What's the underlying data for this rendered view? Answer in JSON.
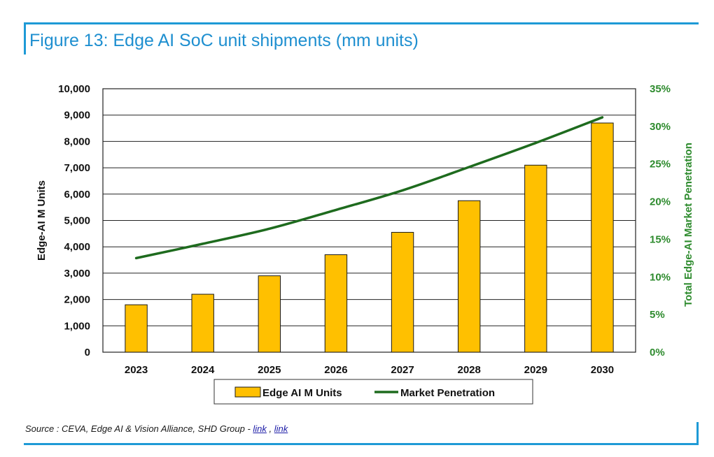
{
  "header": {
    "title": "Figure 13: Edge AI SoC unit shipments (mm units)"
  },
  "footer": {
    "source_prefix": "Source : CEVA, Edge AI & Vision Alliance, SHD Group - ",
    "link1": "link",
    "separator": " , ",
    "link2": "link"
  },
  "chart_data": {
    "type": "bar",
    "categories": [
      "2023",
      "2024",
      "2025",
      "2026",
      "2027",
      "2028",
      "2029",
      "2030"
    ],
    "series": [
      {
        "name": "Edge AI M Units",
        "type": "bar",
        "axis": "left",
        "values": [
          1800,
          2200,
          2900,
          3700,
          4550,
          5750,
          7100,
          8700
        ]
      },
      {
        "name": "Market Penetration",
        "type": "line",
        "axis": "right",
        "values": [
          12.5,
          14.4,
          16.4,
          18.9,
          21.5,
          24.6,
          27.8,
          31.2
        ]
      }
    ],
    "ylabel": "Edge-AI M Units",
    "ylabel_right": "Total Edge-AI Market Penetration",
    "ylim": [
      0,
      10000
    ],
    "ylim_right": [
      0,
      35
    ],
    "yticks": [
      "0",
      "1,000",
      "2,000",
      "3,000",
      "4,000",
      "5,000",
      "6,000",
      "7,000",
      "8,000",
      "9,000",
      "10,000"
    ],
    "yticks_right": [
      "0%",
      "5%",
      "10%",
      "15%",
      "20%",
      "25%",
      "30%",
      "35%"
    ],
    "grid": true,
    "legend_position": "bottom",
    "colors": {
      "bar": "#ffc000",
      "bar_edge": "#1a1a1a",
      "line": "#1e6b1e",
      "right_axis_text": "#2e8b2e"
    }
  }
}
